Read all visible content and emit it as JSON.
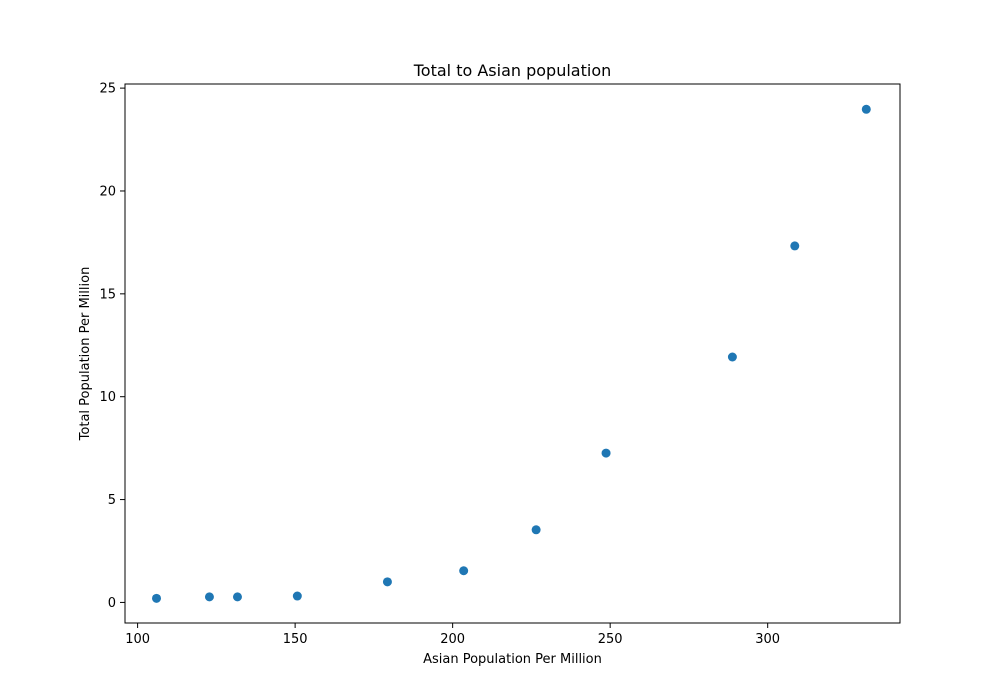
{
  "chart_data": {
    "type": "scatter",
    "title": "Total to Asian population",
    "xlabel": "Asian Population Per Million",
    "ylabel": "Total Population Per Million",
    "xlim": [
      96,
      342
    ],
    "ylim": [
      -1,
      25.2
    ],
    "xticks": [
      100,
      150,
      200,
      250,
      300
    ],
    "yticks": [
      0,
      5,
      10,
      15,
      20,
      25
    ],
    "grid": false,
    "marker_color": "#1f77b4",
    "points": [
      {
        "x": 106,
        "y": 0.2
      },
      {
        "x": 122.8,
        "y": 0.27
      },
      {
        "x": 131.7,
        "y": 0.27
      },
      {
        "x": 150.7,
        "y": 0.31
      },
      {
        "x": 179.3,
        "y": 1.0
      },
      {
        "x": 203.5,
        "y": 1.54
      },
      {
        "x": 226.5,
        "y": 3.53
      },
      {
        "x": 248.7,
        "y": 7.26
      },
      {
        "x": 288.8,
        "y": 11.93
      },
      {
        "x": 308.6,
        "y": 17.33
      },
      {
        "x": 331.3,
        "y": 23.97
      }
    ]
  }
}
